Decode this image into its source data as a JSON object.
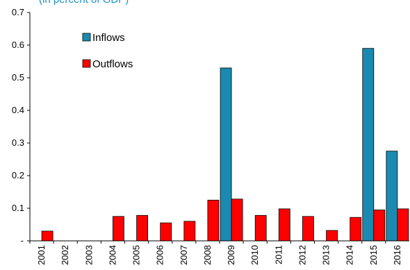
{
  "chart_data": {
    "type": "bar",
    "subtitle": "(in percent of GDP)",
    "categories": [
      "2001",
      "2002",
      "2003",
      "2004",
      "2005",
      "2006",
      "2007",
      "2008",
      "2009",
      "2010",
      "2011",
      "2012",
      "2013",
      "2014",
      "2015",
      "2016"
    ],
    "series": [
      {
        "name": "Inflows",
        "color": "#1b8ab0",
        "values": [
          0,
          0,
          0,
          0,
          0,
          0,
          0,
          0,
          0.53,
          0,
          0,
          0,
          0,
          0,
          0.59,
          0.275
        ]
      },
      {
        "name": "Outflows",
        "color": "#ff0000",
        "values": [
          0.03,
          0,
          0,
          0.075,
          0.078,
          0.055,
          0.06,
          0.125,
          0.128,
          0.078,
          0.098,
          0.075,
          0.032,
          0.072,
          0.095,
          0.098
        ]
      }
    ],
    "yticks": [
      "-",
      "0.1",
      "0.2",
      "0.3",
      "0.4",
      "0.5",
      "0.6",
      "0.7"
    ],
    "ylim": [
      0,
      0.7
    ],
    "legend_position": "top-left"
  }
}
